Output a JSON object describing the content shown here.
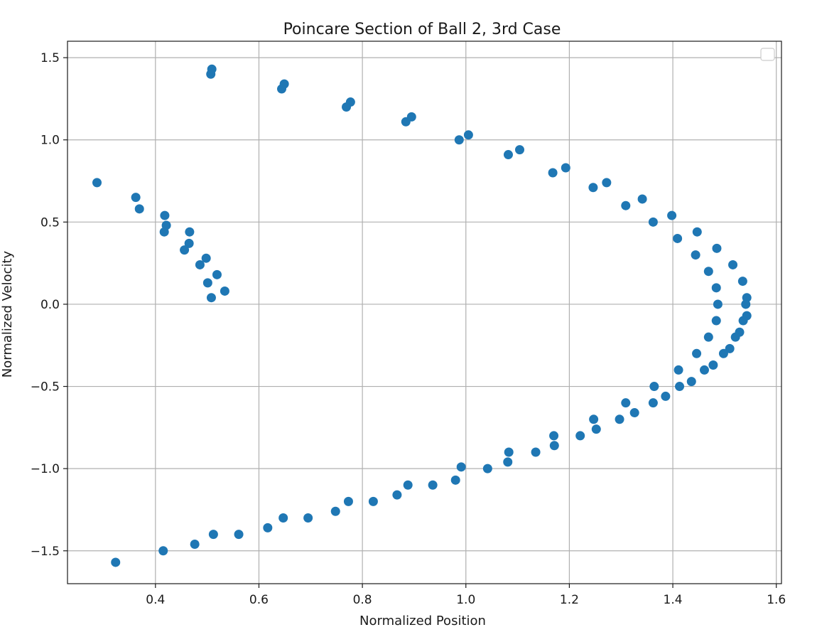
{
  "chart_data": {
    "type": "scatter",
    "title": "Poincare Section of Ball 2, 3rd Case",
    "xlabel": "Normalized Position",
    "ylabel": "Normalized Velocity",
    "xlim": [
      0.23,
      1.61
    ],
    "ylim": [
      -1.7,
      1.6
    ],
    "xticks": [
      0.4,
      0.6,
      0.8,
      1.0,
      1.2,
      1.4,
      1.6
    ],
    "xtick_labels": [
      "0.4",
      "0.6",
      "0.8",
      "1.0",
      "1.2",
      "1.4",
      "1.6"
    ],
    "yticks": [
      -1.5,
      -1.0,
      -0.5,
      0.0,
      0.5,
      1.0,
      1.5
    ],
    "ytick_labels": [
      "−1.5",
      "−1.0",
      "−0.5",
      "0.0",
      "0.5",
      "1.0",
      "1.5"
    ],
    "grid": true,
    "legend": "top-right",
    "color": "#1f77b4",
    "series": [
      {
        "points": [
          [
            0.509,
            1.43
          ],
          [
            0.507,
            1.4
          ],
          [
            0.649,
            1.34
          ],
          [
            0.644,
            1.31
          ],
          [
            0.777,
            1.23
          ],
          [
            0.769,
            1.2
          ],
          [
            0.895,
            1.14
          ],
          [
            0.884,
            1.11
          ],
          [
            1.005,
            1.03
          ],
          [
            0.987,
            1.0
          ],
          [
            1.104,
            0.94
          ],
          [
            1.082,
            0.91
          ],
          [
            1.193,
            0.83
          ],
          [
            1.168,
            0.8
          ],
          [
            1.272,
            0.74
          ],
          [
            1.246,
            0.71
          ],
          [
            1.341,
            0.64
          ],
          [
            1.309,
            0.6
          ],
          [
            1.398,
            0.54
          ],
          [
            1.362,
            0.5
          ],
          [
            1.447,
            0.44
          ],
          [
            1.409,
            0.4
          ],
          [
            1.485,
            0.34
          ],
          [
            1.444,
            0.3
          ],
          [
            1.516,
            0.24
          ],
          [
            1.469,
            0.2
          ],
          [
            1.535,
            0.14
          ],
          [
            1.484,
            0.1
          ],
          [
            1.543,
            0.04
          ],
          [
            1.487,
            0.0
          ],
          [
            1.541,
            0.0
          ],
          [
            1.543,
            -0.07
          ],
          [
            1.484,
            -0.1
          ],
          [
            1.536,
            -0.1
          ],
          [
            1.529,
            -0.17
          ],
          [
            1.469,
            -0.2
          ],
          [
            1.521,
            -0.2
          ],
          [
            1.51,
            -0.27
          ],
          [
            1.446,
            -0.3
          ],
          [
            1.498,
            -0.3
          ],
          [
            1.478,
            -0.37
          ],
          [
            1.461,
            -0.4
          ],
          [
            1.411,
            -0.4
          ],
          [
            1.436,
            -0.47
          ],
          [
            1.413,
            -0.5
          ],
          [
            1.364,
            -0.5
          ],
          [
            1.386,
            -0.56
          ],
          [
            1.362,
            -0.6
          ],
          [
            1.309,
            -0.6
          ],
          [
            1.326,
            -0.66
          ],
          [
            1.247,
            -0.7
          ],
          [
            1.297,
            -0.7
          ],
          [
            1.252,
            -0.76
          ],
          [
            1.17,
            -0.8
          ],
          [
            1.221,
            -0.8
          ],
          [
            1.171,
            -0.86
          ],
          [
            1.083,
            -0.9
          ],
          [
            1.135,
            -0.9
          ],
          [
            1.081,
            -0.96
          ],
          [
            0.991,
            -0.99
          ],
          [
            1.042,
            -1.0
          ],
          [
            0.98,
            -1.07
          ],
          [
            0.888,
            -1.1
          ],
          [
            0.936,
            -1.1
          ],
          [
            0.867,
            -1.16
          ],
          [
            0.773,
            -1.2
          ],
          [
            0.821,
            -1.2
          ],
          [
            0.748,
            -1.26
          ],
          [
            0.647,
            -1.3
          ],
          [
            0.695,
            -1.3
          ],
          [
            0.617,
            -1.36
          ],
          [
            0.512,
            -1.4
          ],
          [
            0.561,
            -1.4
          ],
          [
            0.476,
            -1.46
          ],
          [
            0.415,
            -1.5
          ],
          [
            0.323,
            -1.57
          ],
          [
            0.287,
            0.74
          ],
          [
            0.362,
            0.65
          ],
          [
            0.369,
            0.58
          ],
          [
            0.418,
            0.54
          ],
          [
            0.421,
            0.48
          ],
          [
            0.417,
            0.44
          ],
          [
            0.466,
            0.44
          ],
          [
            0.465,
            0.37
          ],
          [
            0.456,
            0.33
          ],
          [
            0.498,
            0.28
          ],
          [
            0.486,
            0.24
          ],
          [
            0.519,
            0.18
          ],
          [
            0.501,
            0.13
          ],
          [
            0.534,
            0.08
          ],
          [
            0.508,
            0.04
          ]
        ]
      }
    ]
  }
}
